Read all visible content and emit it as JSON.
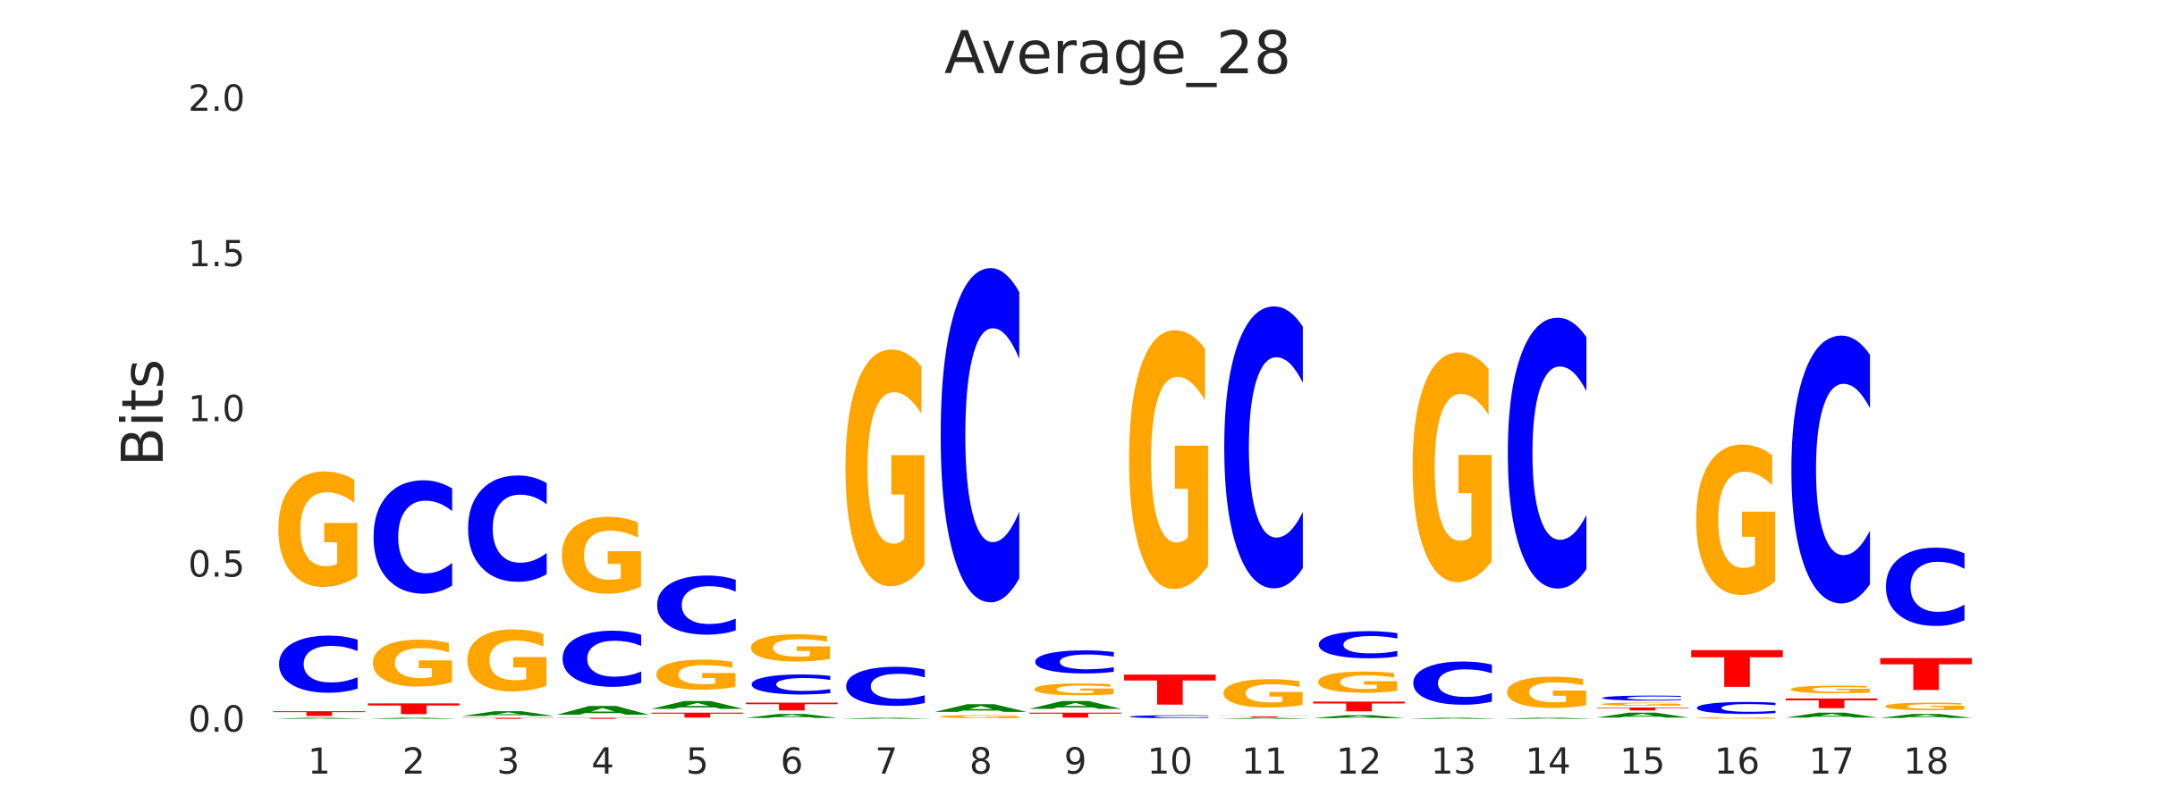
{
  "chart_data": {
    "type": "sequence-logo",
    "title": "Average_28",
    "ylabel": "Bits",
    "xlabel": "",
    "ylim": [
      0,
      2
    ],
    "yticks": [
      "0.0",
      "0.5",
      "1.0",
      "1.5",
      "2.0"
    ],
    "ytick_values": [
      0,
      0.5,
      1.0,
      1.5,
      2.0
    ],
    "grid": false,
    "colors": {
      "A": "#008000",
      "C": "#0000ff",
      "G": "#ffa500",
      "T": "#ff0000"
    },
    "positions": [
      {
        "label": "1",
        "stack": [
          {
            "base": "A",
            "h": 0.005
          },
          {
            "base": "T",
            "h": 0.025
          },
          {
            "base": "C",
            "h": 0.285
          },
          {
            "base": "G",
            "h": 0.575
          }
        ]
      },
      {
        "label": "2",
        "stack": [
          {
            "base": "A",
            "h": 0.005
          },
          {
            "base": "T",
            "h": 0.055
          },
          {
            "base": "G",
            "h": 0.235
          },
          {
            "base": "C",
            "h": 0.565
          }
        ]
      },
      {
        "label": "3",
        "stack": [
          {
            "base": "T",
            "h": 0.005
          },
          {
            "base": "A",
            "h": 0.025
          },
          {
            "base": "G",
            "h": 0.31
          },
          {
            "base": "C",
            "h": 0.53
          }
        ]
      },
      {
        "label": "4",
        "stack": [
          {
            "base": "T",
            "h": 0.005
          },
          {
            "base": "A",
            "h": 0.045
          },
          {
            "base": "C",
            "h": 0.28
          },
          {
            "base": "G",
            "h": 0.38
          }
        ]
      },
      {
        "label": "5",
        "stack": [
          {
            "base": "T",
            "h": 0.025
          },
          {
            "base": "A",
            "h": 0.04
          },
          {
            "base": "G",
            "h": 0.15
          },
          {
            "base": "C",
            "h": 0.295
          }
        ]
      },
      {
        "label": "6",
        "stack": [
          {
            "base": "A",
            "h": 0.02
          },
          {
            "base": "T",
            "h": 0.04
          },
          {
            "base": "C",
            "h": 0.1
          },
          {
            "base": "G",
            "h": 0.135
          }
        ]
      },
      {
        "label": "7",
        "stack": [
          {
            "base": "A",
            "h": 0.005
          },
          {
            "base": "C",
            "h": 0.195
          },
          {
            "base": "G",
            "h": 1.18
          }
        ]
      },
      {
        "label": "8",
        "stack": [
          {
            "base": "G",
            "h": 0.015
          },
          {
            "base": "A",
            "h": 0.04
          },
          {
            "base": "C",
            "h": 1.665
          }
        ]
      },
      {
        "label": "9",
        "stack": [
          {
            "base": "T",
            "h": 0.025
          },
          {
            "base": "A",
            "h": 0.04
          },
          {
            "base": "G",
            "h": 0.06
          },
          {
            "base": "C",
            "h": 0.115
          }
        ]
      },
      {
        "label": "10",
        "stack": [
          {
            "base": "C",
            "h": 0.015
          },
          {
            "base": "T",
            "h": 0.155
          },
          {
            "base": "G",
            "h": 1.29
          }
        ]
      },
      {
        "label": "11",
        "stack": [
          {
            "base": "A",
            "h": 0.005
          },
          {
            "base": "T",
            "h": 0.005
          },
          {
            "base": "G",
            "h": 0.14
          },
          {
            "base": "C",
            "h": 1.405
          }
        ]
      },
      {
        "label": "12",
        "stack": [
          {
            "base": "A",
            "h": 0.015
          },
          {
            "base": "T",
            "h": 0.05
          },
          {
            "base": "G",
            "h": 0.105
          },
          {
            "base": "C",
            "h": 0.135
          }
        ]
      },
      {
        "label": "13",
        "stack": [
          {
            "base": "A",
            "h": 0.005
          },
          {
            "base": "C",
            "h": 0.215
          },
          {
            "base": "G",
            "h": 1.145
          }
        ]
      },
      {
        "label": "14",
        "stack": [
          {
            "base": "A",
            "h": 0.005
          },
          {
            "base": "G",
            "h": 0.155
          },
          {
            "base": "C",
            "h": 1.35
          }
        ]
      },
      {
        "label": "15",
        "stack": [
          {
            "base": "A",
            "h": 0.025
          },
          {
            "base": "T",
            "h": 0.015
          },
          {
            "base": "G",
            "h": 0.015
          },
          {
            "base": "C",
            "h": 0.025
          }
        ]
      },
      {
        "label": "16",
        "stack": [
          {
            "base": "G",
            "h": 0.005
          },
          {
            "base": "C",
            "h": 0.06
          },
          {
            "base": "T",
            "h": 0.19
          },
          {
            "base": "G",
            "h": 0.75
          }
        ]
      },
      {
        "label": "17",
        "stack": [
          {
            "base": "A",
            "h": 0.025
          },
          {
            "base": "T",
            "h": 0.05
          },
          {
            "base": "G",
            "h": 0.04
          },
          {
            "base": "C",
            "h": 1.335
          }
        ]
      },
      {
        "label": "18",
        "stack": [
          {
            "base": "A",
            "h": 0.02
          },
          {
            "base": "G",
            "h": 0.04
          },
          {
            "base": "T",
            "h": 0.165
          },
          {
            "base": "C",
            "h": 0.39
          }
        ]
      }
    ]
  }
}
